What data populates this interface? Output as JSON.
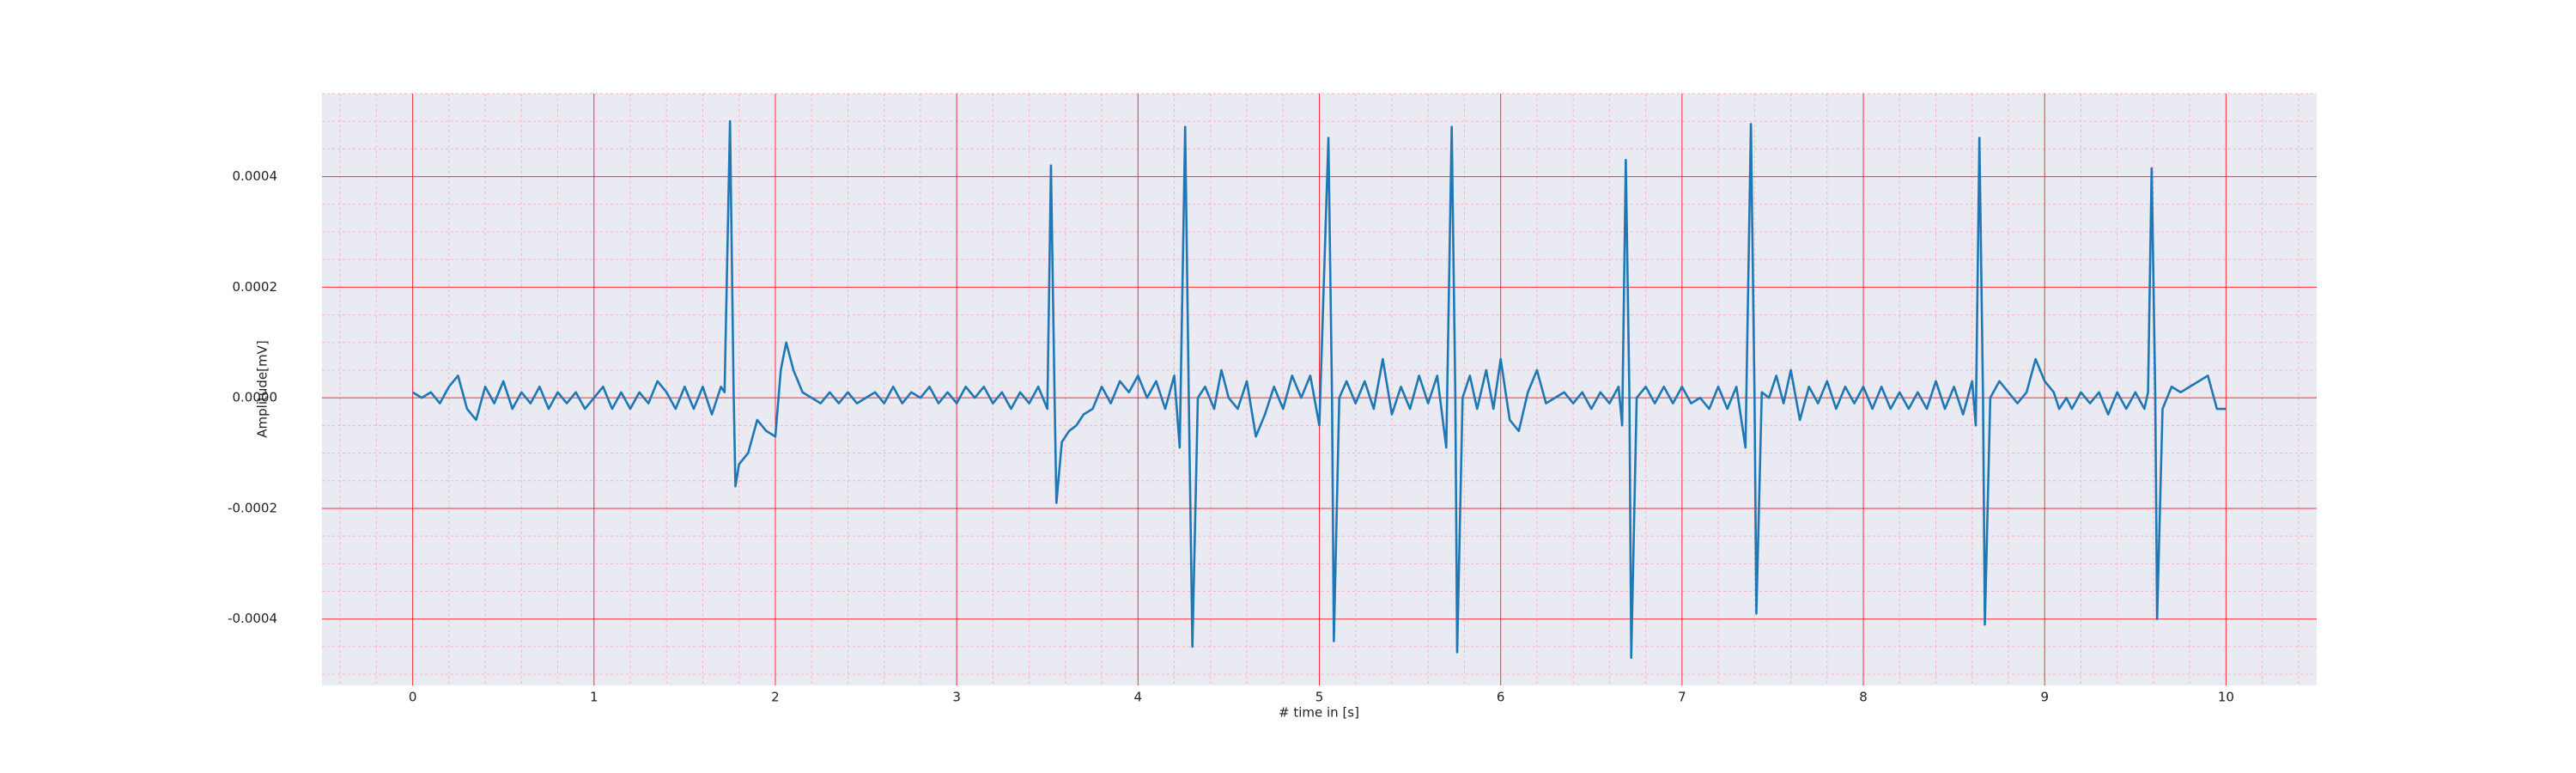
{
  "chart_data": {
    "type": "line",
    "xlabel": "# time in [s]",
    "ylabel": "Amplitude[mV]",
    "color": "#1f77b4",
    "xlim": [
      -0.5,
      10.5
    ],
    "ylim": [
      -0.00052,
      0.00055
    ],
    "xticks": [
      0,
      1,
      2,
      3,
      4,
      5,
      6,
      7,
      8,
      9,
      10
    ],
    "yticks": [
      -0.0004,
      -0.0002,
      {
        "value": 0,
        "label": "0.0000"
      },
      0.0002,
      0.0004
    ],
    "grid": true,
    "grid_color": "#ff0000",
    "minor_grid": {
      "x_divisions": 5,
      "y_divisions": 4,
      "color": "#ffb0c0"
    },
    "background": "#eaeaf2",
    "x": [
      0,
      0.05,
      0.1,
      0.15,
      0.2,
      0.25,
      0.3,
      0.35,
      0.4,
      0.45,
      0.5,
      0.55,
      0.6,
      0.65,
      0.7,
      0.75,
      0.8,
      0.85,
      0.9,
      0.95,
      1.0,
      1.05,
      1.1,
      1.15,
      1.2,
      1.25,
      1.3,
      1.35,
      1.4,
      1.45,
      1.5,
      1.55,
      1.6,
      1.65,
      1.7,
      1.72,
      1.75,
      1.77,
      1.78,
      1.8,
      1.85,
      1.9,
      1.95,
      2.0,
      2.03,
      2.06,
      2.1,
      2.15,
      2.2,
      2.25,
      2.3,
      2.35,
      2.4,
      2.45,
      2.5,
      2.55,
      2.6,
      2.65,
      2.7,
      2.75,
      2.8,
      2.85,
      2.9,
      2.95,
      3.0,
      3.05,
      3.1,
      3.15,
      3.2,
      3.25,
      3.3,
      3.35,
      3.4,
      3.45,
      3.5,
      3.52,
      3.54,
      3.55,
      3.58,
      3.62,
      3.66,
      3.7,
      3.75,
      3.8,
      3.85,
      3.9,
      3.95,
      4.0,
      4.05,
      4.1,
      4.15,
      4.2,
      4.23,
      4.26,
      4.28,
      4.3,
      4.33,
      4.37,
      4.42,
      4.46,
      4.5,
      4.55,
      4.6,
      4.65,
      4.7,
      4.75,
      4.8,
      4.85,
      4.9,
      4.95,
      5.0,
      5.05,
      5.07,
      5.08,
      5.11,
      5.15,
      5.2,
      5.25,
      5.3,
      5.35,
      5.4,
      5.45,
      5.5,
      5.55,
      5.6,
      5.65,
      5.7,
      5.73,
      5.75,
      5.76,
      5.79,
      5.83,
      5.87,
      5.92,
      5.96,
      6.0,
      6.05,
      6.1,
      6.15,
      6.2,
      6.25,
      6.3,
      6.35,
      6.4,
      6.45,
      6.5,
      6.55,
      6.6,
      6.65,
      6.67,
      6.69,
      6.71,
      6.72,
      6.75,
      6.8,
      6.85,
      6.9,
      6.95,
      7.0,
      7.05,
      7.1,
      7.15,
      7.2,
      7.25,
      7.3,
      7.35,
      7.38,
      7.4,
      7.41,
      7.44,
      7.48,
      7.52,
      7.56,
      7.6,
      7.65,
      7.7,
      7.75,
      7.8,
      7.85,
      7.9,
      7.95,
      8.0,
      8.05,
      8.1,
      8.15,
      8.2,
      8.25,
      8.3,
      8.35,
      8.4,
      8.45,
      8.5,
      8.55,
      8.6,
      8.62,
      8.64,
      8.66,
      8.67,
      8.7,
      8.75,
      8.8,
      8.85,
      8.9,
      8.95,
      9.0,
      9.05,
      9.08,
      9.12,
      9.15,
      9.2,
      9.25,
      9.3,
      9.35,
      9.4,
      9.45,
      9.5,
      9.55,
      9.57,
      9.59,
      9.61,
      9.62,
      9.65,
      9.7,
      9.75,
      9.8,
      9.85,
      9.9,
      9.95,
      10.0
    ],
    "values": [
      1e-05,
      0,
      1e-05,
      -1e-05,
      2e-05,
      4e-05,
      -2e-05,
      -4e-05,
      2e-05,
      -1e-05,
      3e-05,
      -2e-05,
      1e-05,
      -1e-05,
      2e-05,
      -2e-05,
      1e-05,
      -1e-05,
      1e-05,
      -2e-05,
      0,
      2e-05,
      -2e-05,
      1e-05,
      -2e-05,
      1e-05,
      -1e-05,
      3e-05,
      1e-05,
      -2e-05,
      2e-05,
      -2e-05,
      2e-05,
      -3e-05,
      2e-05,
      1e-05,
      0.0005,
      1e-05,
      -0.00016,
      -0.00012,
      -0.0001,
      -4e-05,
      -6e-05,
      -7e-05,
      5e-05,
      0.0001,
      5e-05,
      1e-05,
      0,
      -1e-05,
      1e-05,
      -1e-05,
      1e-05,
      -1e-05,
      0,
      1e-05,
      -1e-05,
      2e-05,
      -1e-05,
      1e-05,
      0,
      2e-05,
      -1e-05,
      1e-05,
      -1e-05,
      2e-05,
      0,
      2e-05,
      -1e-05,
      1e-05,
      -2e-05,
      1e-05,
      -1e-05,
      2e-05,
      -2e-05,
      0.00042,
      0,
      -0.00019,
      -8e-05,
      -6e-05,
      -5e-05,
      -3e-05,
      -2e-05,
      2e-05,
      -1e-05,
      3e-05,
      1e-05,
      4e-05,
      0,
      3e-05,
      -2e-05,
      4e-05,
      -9e-05,
      0.00049,
      0,
      -0.00045,
      0,
      2e-05,
      -2e-05,
      5e-05,
      0,
      -2e-05,
      3e-05,
      -7e-05,
      -3e-05,
      2e-05,
      -2e-05,
      4e-05,
      0,
      4e-05,
      -5e-05,
      0.00047,
      0,
      -0.00044,
      0,
      3e-05,
      -1e-05,
      3e-05,
      -2e-05,
      7e-05,
      -3e-05,
      2e-05,
      -2e-05,
      4e-05,
      -1e-05,
      4e-05,
      -9e-05,
      0.00049,
      0,
      -0.00046,
      0,
      4e-05,
      -2e-05,
      5e-05,
      -2e-05,
      7e-05,
      -4e-05,
      -6e-05,
      1e-05,
      5e-05,
      -1e-05,
      0,
      1e-05,
      -1e-05,
      1e-05,
      -2e-05,
      1e-05,
      -1e-05,
      2e-05,
      -5e-05,
      0.00043,
      0,
      -0.00047,
      0,
      2e-05,
      -1e-05,
      2e-05,
      -1e-05,
      2e-05,
      -1e-05,
      0,
      -2e-05,
      2e-05,
      -2e-05,
      2e-05,
      -9e-05,
      0.000495,
      0,
      -0.00039,
      1e-05,
      0,
      4e-05,
      -1e-05,
      5e-05,
      -4e-05,
      2e-05,
      -1e-05,
      3e-05,
      -2e-05,
      2e-05,
      -1e-05,
      2e-05,
      -2e-05,
      2e-05,
      -2e-05,
      1e-05,
      -2e-05,
      1e-05,
      -2e-05,
      3e-05,
      -2e-05,
      2e-05,
      -3e-05,
      3e-05,
      -5e-05,
      0.00047,
      0,
      -0.00041,
      0,
      3e-05,
      1e-05,
      -1e-05,
      1e-05,
      7e-05,
      3e-05,
      1e-05,
      -2e-05,
      0,
      -2e-05,
      1e-05,
      -1e-05,
      1e-05,
      -3e-05,
      1e-05,
      -2e-05,
      1e-05,
      -2e-05,
      1e-05,
      0.000415,
      0,
      -0.0004,
      -2e-05,
      2e-05,
      1e-05,
      2e-05,
      3e-05,
      4e-05,
      -2e-05,
      -2e-05
    ]
  }
}
